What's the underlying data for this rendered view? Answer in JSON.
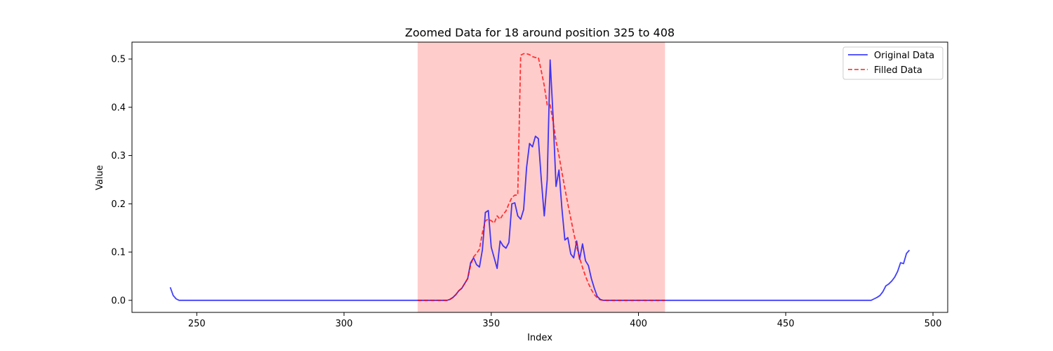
{
  "chart_data": {
    "type": "line",
    "title": "Zoomed Data for 18 around position 325 to 408",
    "xlabel": "Index",
    "ylabel": "Value",
    "xlim": [
      228,
      505
    ],
    "ylim": [
      -0.025,
      0.535
    ],
    "xticks": [
      250,
      300,
      350,
      400,
      450,
      500
    ],
    "yticks": [
      0.0,
      0.1,
      0.2,
      0.3,
      0.4,
      0.5
    ],
    "xtick_labels": [
      "250",
      "300",
      "350",
      "400",
      "450",
      "500"
    ],
    "ytick_labels": [
      "0.0",
      "0.1",
      "0.2",
      "0.3",
      "0.4",
      "0.5"
    ],
    "grid": false,
    "legend_position": "top-right",
    "highlight_span": {
      "x0": 325,
      "x1": 409,
      "color": "#ff0000",
      "opacity": 0.2
    },
    "series": [
      {
        "name": "Original Data",
        "color": "#0000ff",
        "style": "solid",
        "x": [
          241,
          242,
          243,
          244,
          245,
          335,
          336,
          337,
          338,
          339,
          340,
          341,
          342,
          343,
          344,
          345,
          346,
          347,
          348,
          349,
          350,
          351,
          352,
          353,
          354,
          355,
          356,
          357,
          358,
          359,
          360,
          361,
          362,
          363,
          364,
          365,
          366,
          367,
          368,
          369,
          370,
          371,
          372,
          373,
          374,
          375,
          376,
          377,
          378,
          379,
          380,
          381,
          382,
          383,
          384,
          385,
          386,
          387,
          388,
          389,
          479,
          480,
          481,
          482,
          483,
          484,
          485,
          486,
          487,
          488,
          489,
          490,
          491,
          492
        ],
        "y": [
          0.027,
          0.01,
          0.003,
          0.0,
          0.0,
          0.0,
          0.002,
          0.006,
          0.012,
          0.02,
          0.025,
          0.035,
          0.045,
          0.078,
          0.088,
          0.074,
          0.069,
          0.105,
          0.182,
          0.186,
          0.11,
          0.088,
          0.066,
          0.123,
          0.113,
          0.108,
          0.12,
          0.2,
          0.202,
          0.175,
          0.168,
          0.188,
          0.275,
          0.325,
          0.318,
          0.34,
          0.335,
          0.25,
          0.175,
          0.25,
          0.498,
          0.38,
          0.236,
          0.27,
          0.19,
          0.125,
          0.13,
          0.096,
          0.088,
          0.123,
          0.085,
          0.117,
          0.082,
          0.072,
          0.045,
          0.025,
          0.008,
          0.002,
          0.0,
          0.0,
          0.0,
          0.003,
          0.006,
          0.01,
          0.018,
          0.03,
          0.034,
          0.04,
          0.048,
          0.06,
          0.078,
          0.076,
          0.097,
          0.104
        ]
      },
      {
        "name": "Filled Data",
        "color": "#ff0000",
        "style": "dashed",
        "x": [
          325,
          335,
          336,
          337,
          338,
          339,
          340,
          341,
          342,
          343,
          344,
          345,
          346,
          347,
          348,
          349,
          350,
          351,
          352,
          353,
          354,
          355,
          356,
          357,
          358,
          359,
          360,
          361,
          362,
          363,
          364,
          365,
          366,
          367,
          368,
          369,
          370,
          371,
          372,
          373,
          374,
          375,
          376,
          377,
          378,
          379,
          380,
          381,
          382,
          383,
          384,
          385,
          386,
          387,
          388,
          389,
          409
        ],
        "y": [
          0.0,
          0.0,
          0.002,
          0.006,
          0.012,
          0.02,
          0.025,
          0.035,
          0.045,
          0.073,
          0.09,
          0.097,
          0.106,
          0.14,
          0.165,
          0.168,
          0.165,
          0.16,
          0.175,
          0.168,
          0.178,
          0.185,
          0.2,
          0.213,
          0.218,
          0.218,
          0.508,
          0.511,
          0.511,
          0.509,
          0.505,
          0.503,
          0.503,
          0.475,
          0.445,
          0.405,
          0.405,
          0.37,
          0.33,
          0.3,
          0.265,
          0.232,
          0.2,
          0.17,
          0.14,
          0.112,
          0.088,
          0.068,
          0.05,
          0.035,
          0.022,
          0.012,
          0.005,
          0.001,
          0.0,
          0.0,
          0.0
        ]
      }
    ]
  }
}
